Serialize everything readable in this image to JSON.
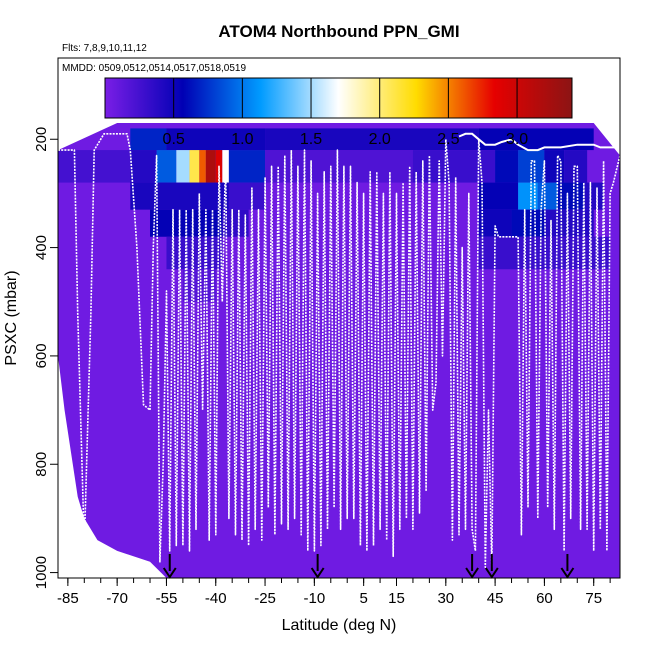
{
  "chart_data": {
    "type": "heatmap",
    "title": "ATOM4 Northbound PPN_GMI",
    "subtitle_flights": "Flts: 7,8,9,10,11,12",
    "subtitle_dates": "MMDD: 0509,0512,0514,0517,0518,0519",
    "xlabel": "Latitude (deg N)",
    "ylabel": "PSXC (mbar)",
    "xlim": [
      -88,
      83
    ],
    "ylim": [
      1010,
      50
    ],
    "x_ticks": [
      -85,
      -70,
      -55,
      -40,
      -25,
      -10,
      5,
      15,
      30,
      45,
      60,
      75
    ],
    "y_ticks": [
      200,
      400,
      600,
      800,
      1000
    ],
    "colorbar": {
      "range": [
        0,
        3.4
      ],
      "ticks": [
        0.5,
        1.0,
        1.5,
        2.0,
        2.5,
        3.0
      ],
      "tick_labels": [
        "0.5",
        "1.0",
        "1.5",
        "2.0",
        "2.5",
        "3.0"
      ],
      "colors": [
        "#7a1ee6",
        "#0000b4",
        "#009bff",
        "#ffffff",
        "#ffdc00",
        "#e60000",
        "#8c1414"
      ]
    },
    "background_value": 0.05,
    "top_pressure": [
      [
        -88,
        220
      ],
      [
        -70,
        170
      ],
      [
        75,
        170
      ],
      [
        83,
        230
      ]
    ],
    "bottom_pressure": [
      [
        -88,
        600
      ],
      [
        -86,
        700
      ],
      [
        -84,
        780
      ],
      [
        -82,
        860
      ],
      [
        -80,
        900
      ],
      [
        -76,
        940
      ],
      [
        -70,
        960
      ],
      [
        -60,
        980
      ],
      [
        -55,
        1010
      ],
      [
        83,
        1010
      ]
    ],
    "hot_cells": [
      {
        "lat": [
          -66,
          -55
        ],
        "p": [
          180,
          220
        ],
        "v": 0.7
      },
      {
        "lat": [
          -55,
          -25
        ],
        "p": [
          180,
          220
        ],
        "v": 0.5
      },
      {
        "lat": [
          -25,
          40
        ],
        "p": [
          180,
          220
        ],
        "v": 0.45
      },
      {
        "lat": [
          40,
          75
        ],
        "p": [
          180,
          220
        ],
        "v": 0.55
      },
      {
        "lat": [
          -88,
          -55
        ],
        "p": [
          220,
          280
        ],
        "v": 0.25
      },
      {
        "lat": [
          -66,
          -58
        ],
        "p": [
          220,
          280
        ],
        "v": 0.4
      },
      {
        "lat": [
          -58,
          -52
        ],
        "p": [
          220,
          280
        ],
        "v": 0.9
      },
      {
        "lat": [
          -52,
          -48
        ],
        "p": [
          220,
          280
        ],
        "v": 1.5
      },
      {
        "lat": [
          -48,
          -45
        ],
        "p": [
          220,
          280
        ],
        "v": 2.1
      },
      {
        "lat": [
          -45,
          -43
        ],
        "p": [
          220,
          280
        ],
        "v": 2.6
      },
      {
        "lat": [
          -43,
          -40
        ],
        "p": [
          220,
          280
        ],
        "v": 3.2
      },
      {
        "lat": [
          -40,
          -38
        ],
        "p": [
          220,
          280
        ],
        "v": 2.9
      },
      {
        "lat": [
          -38,
          -36
        ],
        "p": [
          220,
          280
        ],
        "v": 1.7
      },
      {
        "lat": [
          -36,
          -25
        ],
        "p": [
          220,
          280
        ],
        "v": 0.7
      },
      {
        "lat": [
          -25,
          20
        ],
        "p": [
          220,
          280
        ],
        "v": 0.2
      },
      {
        "lat": [
          20,
          45
        ],
        "p": [
          220,
          280
        ],
        "v": 0.3
      },
      {
        "lat": [
          45,
          52
        ],
        "p": [
          220,
          280
        ],
        "v": 0.6
      },
      {
        "lat": [
          52,
          60
        ],
        "p": [
          220,
          280
        ],
        "v": 0.8
      },
      {
        "lat": [
          60,
          66
        ],
        "p": [
          220,
          280
        ],
        "v": 0.5
      },
      {
        "lat": [
          66,
          73
        ],
        "p": [
          220,
          280
        ],
        "v": 0.4
      },
      {
        "lat": [
          -66,
          -36
        ],
        "p": [
          280,
          330
        ],
        "v": 0.45
      },
      {
        "lat": [
          -36,
          -25
        ],
        "p": [
          280,
          330
        ],
        "v": 0.3
      },
      {
        "lat": [
          40,
          52
        ],
        "p": [
          280,
          330
        ],
        "v": 0.55
      },
      {
        "lat": [
          52,
          58
        ],
        "p": [
          280,
          330
        ],
        "v": 1.1
      },
      {
        "lat": [
          58,
          64
        ],
        "p": [
          280,
          330
        ],
        "v": 0.9
      },
      {
        "lat": [
          64,
          72
        ],
        "p": [
          280,
          330
        ],
        "v": 0.6
      },
      {
        "lat": [
          72,
          78
        ],
        "p": [
          280,
          330
        ],
        "v": 0.4
      },
      {
        "lat": [
          -60,
          -38
        ],
        "p": [
          330,
          380
        ],
        "v": 0.55
      },
      {
        "lat": [
          -38,
          -30
        ],
        "p": [
          330,
          380
        ],
        "v": 0.35
      },
      {
        "lat": [
          40,
          50
        ],
        "p": [
          330,
          380
        ],
        "v": 0.5
      },
      {
        "lat": [
          50,
          60
        ],
        "p": [
          330,
          380
        ],
        "v": 0.6
      },
      {
        "lat": [
          60,
          75
        ],
        "p": [
          330,
          380
        ],
        "v": 0.4
      },
      {
        "lat": [
          -55,
          -38
        ],
        "p": [
          380,
          440
        ],
        "v": 0.3
      },
      {
        "lat": [
          40,
          80
        ],
        "p": [
          380,
          440
        ],
        "v": 0.3
      },
      {
        "lat": [
          -50,
          -40
        ],
        "p": [
          440,
          500
        ],
        "v": 0.18
      }
    ],
    "flight_track": [
      [
        -88,
        220
      ],
      [
        -83,
        220
      ],
      [
        -82,
        520
      ],
      [
        -80,
        950
      ],
      [
        -78,
        520
      ],
      [
        -77,
        220
      ],
      [
        -75,
        200
      ],
      [
        -74,
        190
      ],
      [
        -67,
        190
      ],
      [
        -66,
        220
      ],
      [
        -64,
        400
      ],
      [
        -62,
        690
      ],
      [
        -60,
        700
      ],
      [
        -59,
        400
      ],
      [
        -58,
        230
      ],
      [
        -57,
        980
      ],
      [
        -56,
        800
      ],
      [
        -55,
        480
      ],
      [
        -54,
        960
      ],
      [
        -53,
        330
      ],
      [
        -52,
        950
      ],
      [
        -51,
        330
      ],
      [
        -50,
        950
      ],
      [
        -49,
        330
      ],
      [
        -48,
        960
      ],
      [
        -47,
        330
      ],
      [
        -46,
        920
      ],
      [
        -45,
        300
      ],
      [
        -44,
        700
      ],
      [
        -43,
        330
      ],
      [
        -42,
        940
      ],
      [
        -41,
        330
      ],
      [
        -40,
        930
      ],
      [
        -39,
        250
      ],
      [
        -38,
        500
      ],
      [
        -37,
        230
      ],
      [
        -36,
        900
      ],
      [
        -35,
        330
      ],
      [
        -34,
        930
      ],
      [
        -33,
        330
      ],
      [
        -32,
        940
      ],
      [
        -31,
        340
      ],
      [
        -30,
        950
      ],
      [
        -29,
        290
      ],
      [
        -28,
        920
      ],
      [
        -27,
        330
      ],
      [
        -26,
        940
      ],
      [
        -25,
        270
      ],
      [
        -24,
        880
      ],
      [
        -23,
        250
      ],
      [
        -22,
        930
      ],
      [
        -21,
        250
      ],
      [
        -20,
        910
      ],
      [
        -19,
        230
      ],
      [
        -18,
        920
      ],
      [
        -17,
        220
      ],
      [
        -16,
        900
      ],
      [
        -15,
        250
      ],
      [
        -14,
        930
      ],
      [
        -13,
        220
      ],
      [
        -12,
        960
      ],
      [
        -11,
        240
      ],
      [
        -10,
        960
      ],
      [
        -9,
        300
      ],
      [
        -8,
        950
      ],
      [
        -7,
        260
      ],
      [
        -6,
        920
      ],
      [
        -5,
        250
      ],
      [
        -4,
        880
      ],
      [
        -3,
        220
      ],
      [
        -2,
        920
      ],
      [
        -1,
        250
      ],
      [
        0,
        900
      ],
      [
        1,
        250
      ],
      [
        2,
        900
      ],
      [
        3,
        280
      ],
      [
        4,
        950
      ],
      [
        5,
        300
      ],
      [
        6,
        960
      ],
      [
        7,
        260
      ],
      [
        8,
        950
      ],
      [
        9,
        260
      ],
      [
        10,
        920
      ],
      [
        11,
        300
      ],
      [
        12,
        940
      ],
      [
        13,
        260
      ],
      [
        14,
        970
      ],
      [
        15,
        300
      ],
      [
        16,
        920
      ],
      [
        17,
        280
      ],
      [
        18,
        900
      ],
      [
        19,
        250
      ],
      [
        20,
        920
      ],
      [
        21,
        260
      ],
      [
        22,
        890
      ],
      [
        23,
        240
      ],
      [
        24,
        850
      ],
      [
        25,
        230
      ],
      [
        26,
        700
      ],
      [
        27,
        650
      ],
      [
        28,
        240
      ],
      [
        29,
        600
      ],
      [
        30,
        200
      ],
      [
        31,
        280
      ],
      [
        32,
        940
      ],
      [
        33,
        270
      ],
      [
        34,
        930
      ],
      [
        35,
        400
      ],
      [
        36,
        920
      ],
      [
        37,
        300
      ],
      [
        38,
        920
      ],
      [
        39,
        960
      ],
      [
        40,
        200
      ],
      [
        41,
        280
      ],
      [
        42,
        990
      ],
      [
        43,
        700
      ],
      [
        44,
        990
      ],
      [
        45,
        360
      ],
      [
        46,
        380
      ],
      [
        52,
        380
      ],
      [
        53,
        930
      ],
      [
        54,
        330
      ],
      [
        55,
        880
      ],
      [
        56,
        240
      ],
      [
        57,
        240
      ],
      [
        58,
        900
      ],
      [
        59,
        330
      ],
      [
        60,
        240
      ],
      [
        61,
        880
      ],
      [
        62,
        350
      ],
      [
        63,
        920
      ],
      [
        64,
        230
      ],
      [
        65,
        240
      ],
      [
        66,
        960
      ],
      [
        67,
        300
      ],
      [
        68,
        900
      ],
      [
        69,
        250
      ],
      [
        70,
        250
      ],
      [
        71,
        920
      ],
      [
        72,
        280
      ],
      [
        73,
        920
      ],
      [
        74,
        280
      ],
      [
        75,
        960
      ],
      [
        76,
        290
      ],
      [
        77,
        920
      ],
      [
        78,
        240
      ],
      [
        79,
        960
      ],
      [
        80,
        300
      ],
      [
        81,
        280
      ],
      [
        83,
        230
      ]
    ],
    "secondary_track": [
      [
        34,
        195
      ],
      [
        36,
        190
      ],
      [
        38,
        190
      ],
      [
        40,
        200
      ],
      [
        42,
        210
      ],
      [
        45,
        210
      ],
      [
        47,
        205
      ],
      [
        50,
        200
      ],
      [
        52,
        210
      ],
      [
        55,
        220
      ],
      [
        58,
        220
      ],
      [
        60,
        215
      ],
      [
        65,
        215
      ],
      [
        70,
        210
      ],
      [
        75,
        210
      ],
      [
        77,
        215
      ],
      [
        80,
        215
      ],
      [
        82,
        215
      ]
    ],
    "arrows_lat": [
      -54,
      -9,
      38,
      44,
      67
    ]
  }
}
